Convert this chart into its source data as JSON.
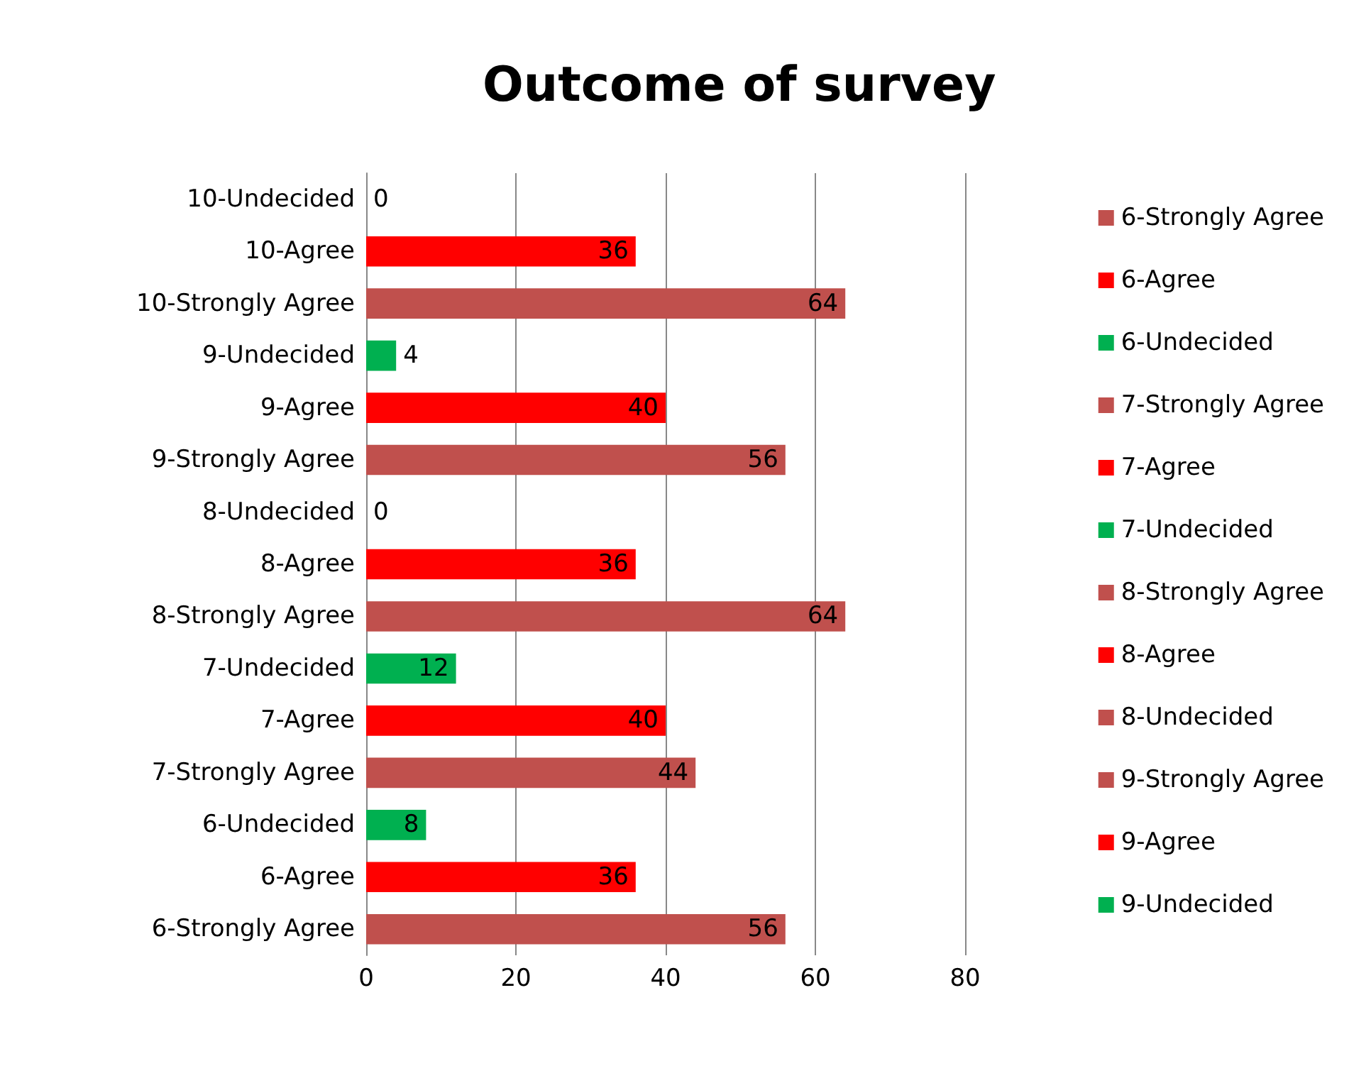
{
  "chart_data": {
    "type": "bar",
    "title": "Outcome of survey",
    "orientation": "horizontal",
    "stacked": true,
    "data_labels": true,
    "grid": "x",
    "legend": "right",
    "categories": [
      "10-Undecided",
      "10-Agree",
      "10-Strongly Agree",
      "9-Undecided",
      "9-Agree",
      "9-Strongly Agree",
      "8-Undecided",
      "8-Agree",
      "8-Strongly Agree",
      "7-Undecided",
      "7-Agree",
      "7-Strongly Agree",
      "6-Undecided",
      "6-Agree",
      "6-Strongly Agree"
    ],
    "xlim": [
      0,
      80
    ],
    "xticks": [
      0,
      20,
      40,
      60,
      80
    ],
    "series": [
      {
        "name": "6-Strongly Agree",
        "color": "#c0504d",
        "values": [
          null,
          null,
          null,
          null,
          null,
          null,
          null,
          null,
          null,
          null,
          null,
          null,
          null,
          null,
          56
        ]
      },
      {
        "name": "6-Agree",
        "color": "#ff0000",
        "values": [
          null,
          null,
          null,
          null,
          null,
          null,
          null,
          null,
          null,
          null,
          null,
          null,
          null,
          36,
          null
        ]
      },
      {
        "name": "6-Undecided",
        "color": "#00b050",
        "values": [
          null,
          null,
          null,
          null,
          null,
          null,
          null,
          null,
          null,
          null,
          null,
          null,
          8,
          null,
          null
        ]
      },
      {
        "name": "7-Strongly Agree",
        "color": "#c0504d",
        "values": [
          null,
          null,
          null,
          null,
          null,
          null,
          null,
          null,
          null,
          null,
          null,
          44,
          null,
          null,
          null
        ]
      },
      {
        "name": "7-Agree",
        "color": "#ff0000",
        "values": [
          null,
          null,
          null,
          null,
          null,
          null,
          null,
          null,
          null,
          null,
          40,
          null,
          null,
          null,
          null
        ]
      },
      {
        "name": "7-Undecided",
        "color": "#00b050",
        "values": [
          null,
          null,
          null,
          null,
          null,
          null,
          null,
          null,
          null,
          12,
          null,
          null,
          null,
          null,
          null
        ]
      },
      {
        "name": "8-Strongly Agree",
        "color": "#c0504d",
        "values": [
          null,
          null,
          null,
          null,
          null,
          null,
          null,
          null,
          64,
          null,
          null,
          null,
          null,
          null,
          null
        ]
      },
      {
        "name": "8-Agree",
        "color": "#ff0000",
        "values": [
          null,
          null,
          null,
          null,
          null,
          null,
          null,
          36,
          null,
          null,
          null,
          null,
          null,
          null,
          null
        ]
      },
      {
        "name": "8-Undecided",
        "color": "#c0504d",
        "values": [
          null,
          null,
          null,
          null,
          null,
          null,
          0,
          null,
          null,
          null,
          null,
          null,
          null,
          null,
          null
        ]
      },
      {
        "name": "9-Strongly Agree",
        "color": "#c0504d",
        "values": [
          null,
          null,
          null,
          null,
          null,
          56,
          null,
          null,
          null,
          null,
          null,
          null,
          null,
          null,
          null
        ]
      },
      {
        "name": "9-Agree",
        "color": "#ff0000",
        "values": [
          null,
          null,
          null,
          null,
          40,
          null,
          null,
          null,
          null,
          null,
          null,
          null,
          null,
          null,
          null
        ]
      },
      {
        "name": "9-Undecided",
        "color": "#00b050",
        "values": [
          null,
          null,
          null,
          4,
          null,
          null,
          null,
          null,
          null,
          null,
          null,
          null,
          null,
          null,
          null
        ]
      },
      {
        "color": "#c0504d",
        "values": [
          null,
          null,
          64,
          null,
          null,
          null,
          null,
          null,
          null,
          null,
          null,
          null,
          null,
          null,
          null
        ]
      },
      {
        "color": "#ff0000",
        "values": [
          null,
          36,
          null,
          null,
          null,
          null,
          null,
          null,
          null,
          null,
          null,
          null,
          null,
          null,
          null
        ]
      },
      {
        "color": "#00b050",
        "values": [
          0,
          null,
          null,
          null,
          null,
          null,
          null,
          null,
          null,
          null,
          null,
          null,
          null,
          null,
          null
        ]
      }
    ]
  }
}
